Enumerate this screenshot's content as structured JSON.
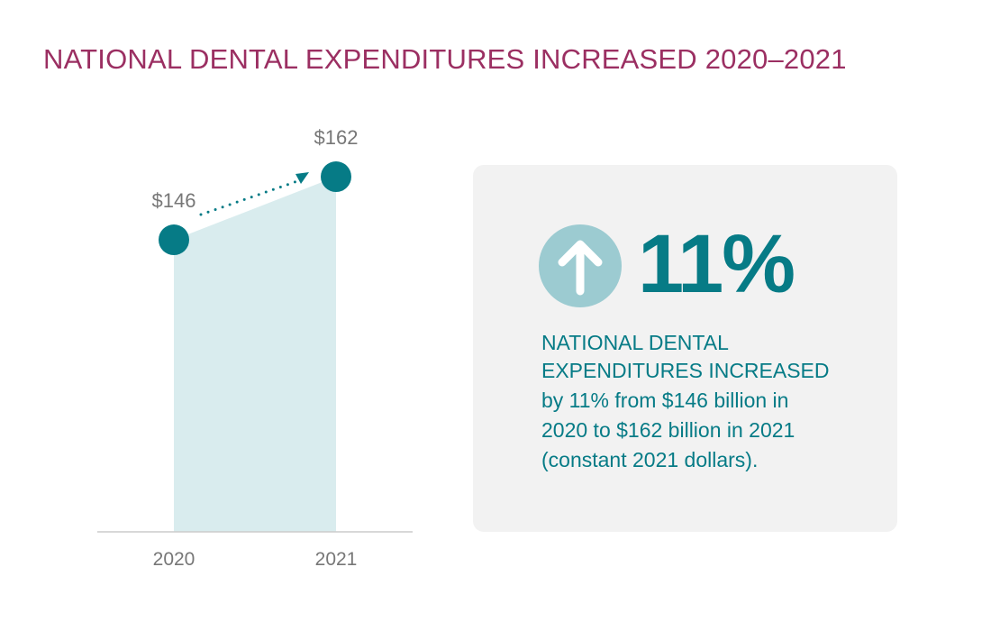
{
  "title": "NATIONAL DENTAL EXPENDITURES INCREASED 2020–2021",
  "chart_data": {
    "type": "area",
    "categories": [
      "2020",
      "2021"
    ],
    "values": [
      146,
      162
    ],
    "data_labels": [
      "$146",
      "$162"
    ],
    "ylim": [
      72,
      170
    ],
    "grid": false,
    "colors": {
      "point": "#067b86",
      "fill": "#d9ecee",
      "axis": "#cccccc"
    }
  },
  "card": {
    "icon": "arrow-up-circle-icon",
    "percent": "11%",
    "heading_line1": "NATIONAL DENTAL",
    "heading_line2": "EXPENDITURES INCREASED",
    "body_line1": "by 11% from $146 billion in",
    "body_line2": "2020 to $162 billion in 2021",
    "body_line3": "(constant 2021 dollars)."
  }
}
